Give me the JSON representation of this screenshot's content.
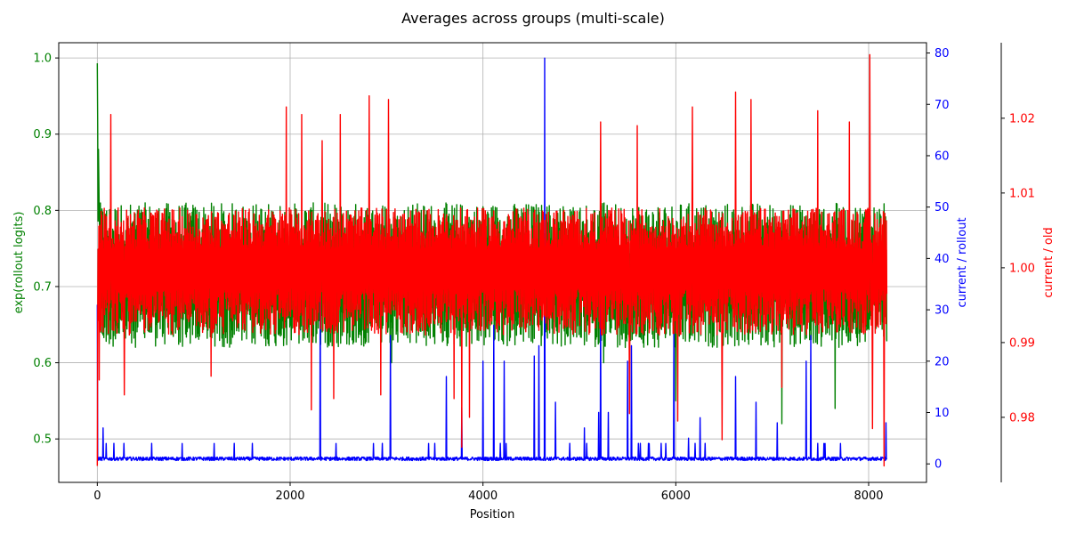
{
  "chart_data": {
    "type": "line",
    "title": "Averages across groups (multi-scale)",
    "xlabel": "Position",
    "xlim": [
      -400,
      8600
    ],
    "xticks": [
      0,
      2000,
      4000,
      6000,
      8000
    ],
    "grid": true,
    "axes": {
      "left": {
        "label": "exp(rollout logits)",
        "color": "#008000",
        "ylim": [
          0.443,
          1.02
        ],
        "ticks": [
          0.5,
          0.6,
          0.7,
          0.8,
          0.9,
          1.0
        ],
        "tick_labels": [
          "0.5",
          "0.6",
          "0.7",
          "0.8",
          "0.9",
          "1.0"
        ]
      },
      "right": {
        "label": "current / rollout",
        "color": "#0000ff",
        "ylim": [
          -3.6,
          82
        ],
        "ticks": [
          0,
          10,
          20,
          30,
          40,
          50,
          60,
          70,
          80
        ],
        "tick_labels": [
          "0",
          "10",
          "20",
          "30",
          "40",
          "50",
          "60",
          "70",
          "80"
        ]
      },
      "right2": {
        "label": "current / old",
        "color": "#ff0000",
        "ylim": [
          0.9713,
          1.0301
        ],
        "ticks": [
          0.98,
          0.99,
          1.0,
          1.01,
          1.02
        ],
        "tick_labels": [
          "0.98",
          "0.99",
          "1.00",
          "1.01",
          "1.02"
        ]
      }
    },
    "series": [
      {
        "axis": "left",
        "color": "#008000",
        "n": 8192,
        "baseline": 0.71,
        "band": [
          0.62,
          0.81
        ],
        "spikes_x": [
          0,
          5,
          10,
          15,
          20,
          3050,
          5250,
          6000,
          7100,
          7650,
          8200
        ],
        "spikes_y": [
          0.993,
          0.91,
          0.88,
          0.84,
          0.8,
          0.6,
          0.6,
          0.55,
          0.52,
          0.54,
          0.58
        ]
      },
      {
        "axis": "right",
        "color": "#0000ff",
        "n": 8192,
        "baseline": 1.0,
        "spikes_x": [
          0,
          60,
          2310,
          3040,
          3620,
          3780,
          4000,
          4110,
          4220,
          4530,
          4580,
          4640,
          4750,
          5050,
          5200,
          5220,
          5300,
          5500,
          5540,
          5980,
          6130,
          6250,
          6620,
          6830,
          7050,
          7350,
          7400,
          8180
        ],
        "spikes_y": [
          31,
          7,
          35,
          25,
          17,
          11,
          20,
          27,
          20,
          21,
          23,
          79,
          12,
          7,
          10,
          31,
          10,
          20,
          23,
          26,
          5,
          9,
          17,
          12,
          8,
          20,
          25,
          8
        ]
      },
      {
        "axis": "right2",
        "color": "#ff0000",
        "n": 8192,
        "baseline": 1.0,
        "band": [
          0.991,
          1.008
        ],
        "spikes_x": [
          0,
          20,
          140,
          280,
          1180,
          1960,
          2120,
          2220,
          2330,
          2450,
          2520,
          2820,
          2940,
          3020,
          3700,
          3780,
          3860,
          5220,
          5520,
          5600,
          6020,
          6170,
          6480,
          6620,
          6780,
          7100,
          7470,
          7800,
          8010,
          8040,
          8160,
          8200
        ],
        "spikes_y": [
          0.9735,
          0.985,
          1.0205,
          0.983,
          0.9855,
          1.0215,
          1.0205,
          0.981,
          1.017,
          0.9825,
          1.0205,
          1.023,
          0.983,
          1.0225,
          0.9825,
          0.976,
          0.98,
          1.0195,
          0.9805,
          1.019,
          0.9795,
          1.0215,
          0.977,
          1.0235,
          1.0225,
          0.984,
          1.021,
          1.0195,
          1.0285,
          0.9785,
          0.9735,
          1.0215
        ]
      }
    ]
  }
}
